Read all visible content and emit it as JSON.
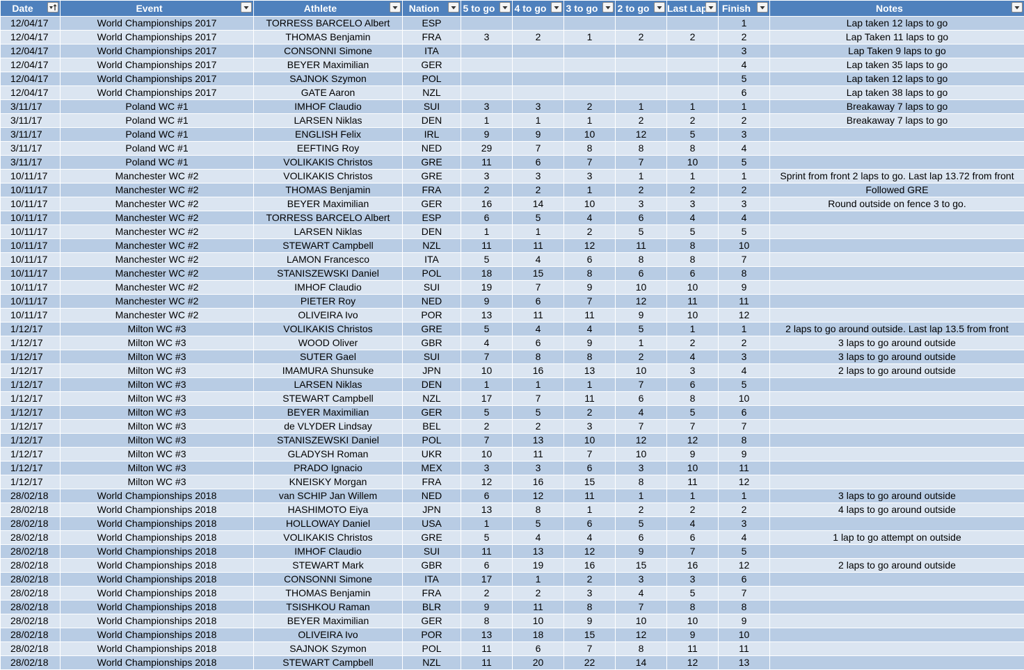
{
  "columns": [
    {
      "label": "Date",
      "sort": "ascending"
    },
    {
      "label": "Event"
    },
    {
      "label": "Athlete"
    },
    {
      "label": "Nation"
    },
    {
      "label": "5 to go"
    },
    {
      "label": "4 to go"
    },
    {
      "label": "3 to go"
    },
    {
      "label": "2 to go"
    },
    {
      "label": "Last Lap"
    },
    {
      "label": "Finish"
    },
    {
      "label": "Notes"
    }
  ],
  "rows": [
    [
      "12/04/17",
      "World Championships 2017",
      "TORRESS BARCELO Albert",
      "ESP",
      "",
      "",
      "",
      "",
      "",
      "1",
      "Lap taken 12 laps to go"
    ],
    [
      "12/04/17",
      "World Championships 2017",
      "THOMAS Benjamin",
      "FRA",
      "3",
      "2",
      "1",
      "2",
      "2",
      "2",
      "Lap Taken 11 laps to go"
    ],
    [
      "12/04/17",
      "World Championships 2017",
      "CONSONNI Simone",
      "ITA",
      "",
      "",
      "",
      "",
      "",
      "3",
      "Lap Taken 9 laps to go"
    ],
    [
      "12/04/17",
      "World Championships 2017",
      "BEYER Maximilian",
      "GER",
      "",
      "",
      "",
      "",
      "",
      "4",
      "Lap taken 35 laps to go"
    ],
    [
      "12/04/17",
      "World Championships 2017",
      "SAJNOK Szymon",
      "POL",
      "",
      "",
      "",
      "",
      "",
      "5",
      "Lap taken 12 laps to go"
    ],
    [
      "12/04/17",
      "World Championships 2017",
      "GATE Aaron",
      "NZL",
      "",
      "",
      "",
      "",
      "",
      "6",
      "Lap taken 38 laps to go"
    ],
    [
      "3/11/17",
      "Poland WC #1",
      "IMHOF Claudio",
      "SUI",
      "3",
      "3",
      "2",
      "1",
      "1",
      "1",
      "Breakaway 7 laps to go"
    ],
    [
      "3/11/17",
      "Poland WC #1",
      "LARSEN Niklas",
      "DEN",
      "1",
      "1",
      "1",
      "2",
      "2",
      "2",
      "Breakaway 7 laps to go"
    ],
    [
      "3/11/17",
      "Poland WC #1",
      "ENGLISH Felix",
      "IRL",
      "9",
      "9",
      "10",
      "12",
      "5",
      "3",
      ""
    ],
    [
      "3/11/17",
      "Poland WC #1",
      "EEFTING Roy",
      "NED",
      "29",
      "7",
      "8",
      "8",
      "8",
      "4",
      ""
    ],
    [
      "3/11/17",
      "Poland WC #1",
      "VOLIKAKIS Christos",
      "GRE",
      "11",
      "6",
      "7",
      "7",
      "10",
      "5",
      ""
    ],
    [
      "10/11/17",
      "Manchester WC #2",
      "VOLIKAKIS Christos",
      "GRE",
      "3",
      "3",
      "3",
      "1",
      "1",
      "1",
      "Sprint from front 2 laps to go. Last lap 13.72 from front"
    ],
    [
      "10/11/17",
      "Manchester WC #2",
      "THOMAS Benjamin",
      "FRA",
      "2",
      "2",
      "1",
      "2",
      "2",
      "2",
      "Followed GRE"
    ],
    [
      "10/11/17",
      "Manchester WC #2",
      "BEYER Maximilian",
      "GER",
      "16",
      "14",
      "10",
      "3",
      "3",
      "3",
      "Round outside on fence 3 to go."
    ],
    [
      "10/11/17",
      "Manchester WC #2",
      "TORRESS BARCELO Albert",
      "ESP",
      "6",
      "5",
      "4",
      "6",
      "4",
      "4",
      ""
    ],
    [
      "10/11/17",
      "Manchester WC #2",
      "LARSEN Niklas",
      "DEN",
      "1",
      "1",
      "2",
      "5",
      "5",
      "5",
      ""
    ],
    [
      "10/11/17",
      "Manchester WC #2",
      "STEWART Campbell",
      "NZL",
      "11",
      "11",
      "12",
      "11",
      "8",
      "10",
      ""
    ],
    [
      "10/11/17",
      "Manchester WC #2",
      "LAMON Francesco",
      "ITA",
      "5",
      "4",
      "6",
      "8",
      "8",
      "7",
      ""
    ],
    [
      "10/11/17",
      "Manchester WC #2",
      "STANISZEWSKI Daniel",
      "POL",
      "18",
      "15",
      "8",
      "6",
      "6",
      "8",
      ""
    ],
    [
      "10/11/17",
      "Manchester WC #2",
      "IMHOF Claudio",
      "SUI",
      "19",
      "7",
      "9",
      "10",
      "10",
      "9",
      ""
    ],
    [
      "10/11/17",
      "Manchester WC #2",
      "PIETER Roy",
      "NED",
      "9",
      "6",
      "7",
      "12",
      "11",
      "11",
      ""
    ],
    [
      "10/11/17",
      "Manchester WC #2",
      "OLIVEIRA Ivo",
      "POR",
      "13",
      "11",
      "11",
      "9",
      "10",
      "12",
      ""
    ],
    [
      "1/12/17",
      "Milton WC #3",
      "VOLIKAKIS Christos",
      "GRE",
      "5",
      "4",
      "4",
      "5",
      "1",
      "1",
      "2 laps to go around outside. Last lap 13.5 from front"
    ],
    [
      "1/12/17",
      "Milton WC #3",
      "WOOD Oliver",
      "GBR",
      "4",
      "6",
      "9",
      "1",
      "2",
      "2",
      "3 laps to go around outside"
    ],
    [
      "1/12/17",
      "Milton WC #3",
      "SUTER Gael",
      "SUI",
      "7",
      "8",
      "8",
      "2",
      "4",
      "3",
      "3 laps to go around outside"
    ],
    [
      "1/12/17",
      "Milton WC #3",
      "IMAMURA Shunsuke",
      "JPN",
      "10",
      "16",
      "13",
      "10",
      "3",
      "4",
      "2 laps to go around outside"
    ],
    [
      "1/12/17",
      "Milton WC #3",
      "LARSEN Niklas",
      "DEN",
      "1",
      "1",
      "1",
      "7",
      "6",
      "5",
      ""
    ],
    [
      "1/12/17",
      "Milton WC #3",
      "STEWART Campbell",
      "NZL",
      "17",
      "7",
      "11",
      "6",
      "8",
      "10",
      ""
    ],
    [
      "1/12/17",
      "Milton WC #3",
      "BEYER Maximilian",
      "GER",
      "5",
      "5",
      "2",
      "4",
      "5",
      "6",
      ""
    ],
    [
      "1/12/17",
      "Milton WC #3",
      "de VLYDER Lindsay",
      "BEL",
      "2",
      "2",
      "3",
      "7",
      "7",
      "7",
      ""
    ],
    [
      "1/12/17",
      "Milton WC #3",
      "STANISZEWSKI Daniel",
      "POL",
      "7",
      "13",
      "10",
      "12",
      "12",
      "8",
      ""
    ],
    [
      "1/12/17",
      "Milton WC #3",
      "GLADYSH Roman",
      "UKR",
      "10",
      "11",
      "7",
      "10",
      "9",
      "9",
      ""
    ],
    [
      "1/12/17",
      "Milton WC #3",
      "PRADO Ignacio",
      "MEX",
      "3",
      "3",
      "6",
      "3",
      "10",
      "11",
      ""
    ],
    [
      "1/12/17",
      "Milton WC #3",
      "KNEISKY Morgan",
      "FRA",
      "12",
      "16",
      "15",
      "8",
      "11",
      "12",
      ""
    ],
    [
      "28/02/18",
      "World Championships 2018",
      "van SCHIP Jan Willem",
      "NED",
      "6",
      "12",
      "11",
      "1",
      "1",
      "1",
      "3 laps to go around outside"
    ],
    [
      "28/02/18",
      "World Championships 2018",
      "HASHIMOTO Eiya",
      "JPN",
      "13",
      "8",
      "1",
      "2",
      "2",
      "2",
      "4 laps to go around outside"
    ],
    [
      "28/02/18",
      "World Championships 2018",
      "HOLLOWAY Daniel",
      "USA",
      "1",
      "5",
      "6",
      "5",
      "4",
      "3",
      ""
    ],
    [
      "28/02/18",
      "World Championships 2018",
      "VOLIKAKIS Christos",
      "GRE",
      "5",
      "4",
      "4",
      "6",
      "6",
      "4",
      "1 lap to go attempt on outside"
    ],
    [
      "28/02/18",
      "World Championships 2018",
      "IMHOF Claudio",
      "SUI",
      "11",
      "13",
      "12",
      "9",
      "7",
      "5",
      ""
    ],
    [
      "28/02/18",
      "World Championships 2018",
      "STEWART Mark",
      "GBR",
      "6",
      "19",
      "16",
      "15",
      "16",
      "12",
      "2 laps to go around outside"
    ],
    [
      "28/02/18",
      "World Championships 2018",
      "CONSONNI Simone",
      "ITA",
      "17",
      "1",
      "2",
      "3",
      "3",
      "6",
      ""
    ],
    [
      "28/02/18",
      "World Championships 2018",
      "THOMAS Benjamin",
      "FRA",
      "2",
      "2",
      "3",
      "4",
      "5",
      "7",
      ""
    ],
    [
      "28/02/18",
      "World Championships 2018",
      "TSISHKOU Raman",
      "BLR",
      "9",
      "11",
      "8",
      "7",
      "8",
      "8",
      ""
    ],
    [
      "28/02/18",
      "World Championships 2018",
      "BEYER Maximilian",
      "GER",
      "8",
      "10",
      "9",
      "10",
      "10",
      "9",
      ""
    ],
    [
      "28/02/18",
      "World Championships 2018",
      "OLIVEIRA Ivo",
      "POR",
      "13",
      "18",
      "15",
      "12",
      "9",
      "10",
      ""
    ],
    [
      "28/02/18",
      "World Championships 2018",
      "SAJNOK Szymon",
      "POL",
      "11",
      "6",
      "7",
      "8",
      "11",
      "11",
      ""
    ],
    [
      "28/02/18",
      "World Championships 2018",
      "STEWART Campbell",
      "NZL",
      "11",
      "20",
      "22",
      "14",
      "12",
      "13",
      ""
    ]
  ]
}
